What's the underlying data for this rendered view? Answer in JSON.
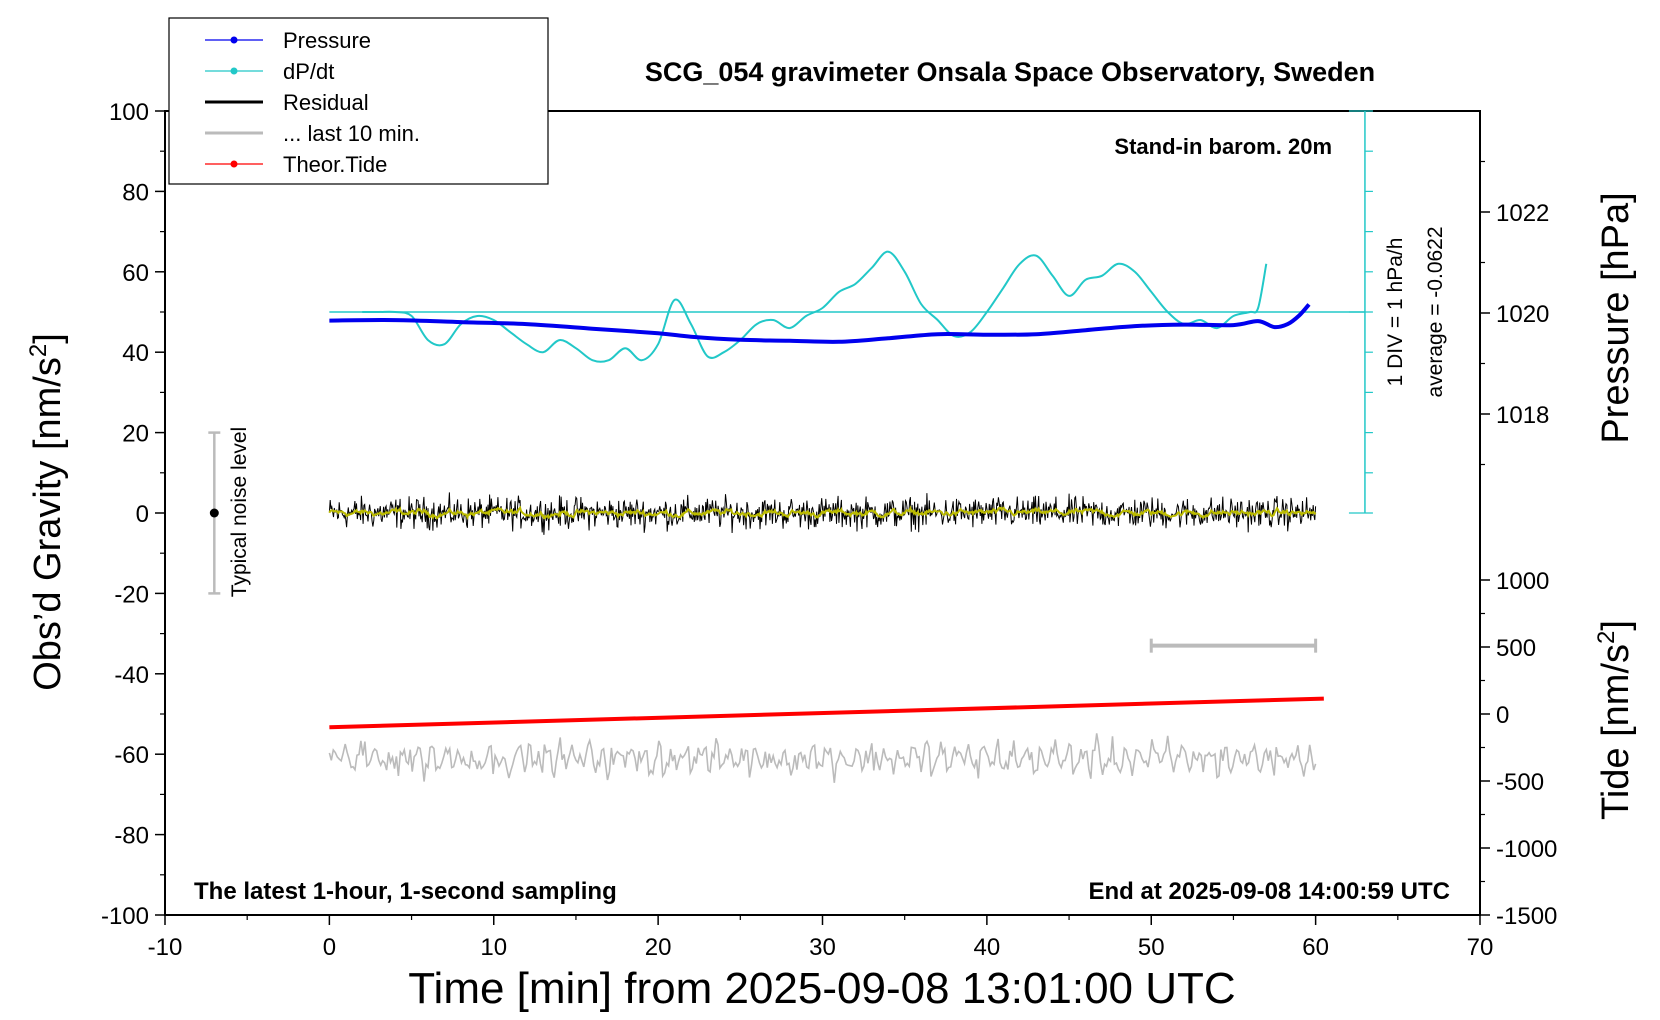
{
  "chart_data": {
    "type": "line",
    "title": "SCG_054 gravimeter Onsala Space Observatory, Sweden",
    "xlabel": "Time [min] from 2025-09-08 13:01:00 UTC",
    "ylabel_left": "Obs’d Gravity [nm/s",
    "ylabel_left_sup": "2",
    "ylabel_left_tail": "]",
    "ylabel_right_pressure": "Pressure [hPa]",
    "ylabel_right_tide": "Tide [nm/s",
    "ylabel_right_tide_sup": "2",
    "ylabel_right_tide_tail": "]",
    "xlim": [
      -10,
      70
    ],
    "ylim_left": [
      -100,
      100
    ],
    "xticks": [
      -10,
      0,
      10,
      20,
      30,
      40,
      50,
      60,
      70
    ],
    "xtick_labels": [
      "-10",
      "0",
      "10",
      "20",
      "30",
      "40",
      "50",
      "60",
      "70"
    ],
    "yticks_left": [
      -100,
      -80,
      -60,
      -40,
      -20,
      0,
      20,
      40,
      60,
      80,
      100
    ],
    "ytick_left_labels": [
      "-100",
      "-80",
      "-60",
      "-40",
      "-20",
      "0",
      "20",
      "40",
      "60",
      "80",
      "100"
    ],
    "pressure_ticks": [
      1018,
      1020,
      1022
    ],
    "pressure_tick_labels": [
      "1018",
      "1020",
      "1022"
    ],
    "tide_ticks": [
      -1500,
      -1000,
      -500,
      0,
      500,
      1000
    ],
    "tide_tick_labels": [
      "-1500",
      "-1000",
      "-500",
      "0",
      "500",
      "1000"
    ],
    "legend_position": "top-left",
    "legend": [
      {
        "label": "Pressure",
        "color": "#0000ee",
        "marker": true
      },
      {
        "label": "dP/dt",
        "color": "#22c8c8",
        "marker": true
      },
      {
        "label": "Residual",
        "color": "#000000",
        "marker": false
      },
      {
        "label": "... last 10 min.",
        "color": "#bbbbbb",
        "marker": false
      },
      {
        "label": "Theor.Tide",
        "color": "#ff0000",
        "marker": true
      }
    ],
    "annotations": {
      "barometer": "Stand-in barom. 20m",
      "div_scale": "1 DIV = 1 hPa/h",
      "average": "average = -0.0622",
      "noise": "Typical noise level",
      "bottom_left": "The latest 1-hour, 1-second sampling",
      "bottom_right": "End at 2025-09-08 14:00:59 UTC"
    },
    "noise_bar": {
      "x": -7,
      "center": 0,
      "low": -20,
      "high": 20
    },
    "last10_bar": {
      "x_start": 50,
      "x_end": 60,
      "y": -33
    },
    "series": [
      {
        "name": "Pressure",
        "color": "#0000ee",
        "axis": "pressure_hPa",
        "x": [
          0,
          4,
          8,
          12,
          16,
          20,
          22,
          25,
          28,
          31,
          34,
          37,
          40,
          43,
          46,
          49,
          52,
          55,
          56.5,
          57.5,
          58.3,
          59,
          59.6
        ],
        "y": [
          1019.85,
          1019.86,
          1019.82,
          1019.78,
          1019.69,
          1019.6,
          1019.53,
          1019.47,
          1019.45,
          1019.43,
          1019.5,
          1019.58,
          1019.57,
          1019.58,
          1019.66,
          1019.74,
          1019.77,
          1019.76,
          1019.84,
          1019.72,
          1019.78,
          1019.95,
          1020.17
        ]
      },
      {
        "name": "dP/dt",
        "color": "#22c8c8",
        "axis": "left_nms2",
        "x": [
          2,
          3,
          4,
          5,
          6,
          7,
          8,
          9,
          10,
          11,
          12,
          13,
          14,
          15,
          16,
          17,
          18,
          19,
          20,
          21,
          22,
          23,
          24,
          25,
          26,
          27,
          28,
          29,
          30,
          31,
          32,
          33,
          34,
          35,
          36,
          37,
          38,
          39,
          40,
          41,
          42,
          43,
          44,
          45,
          46,
          47,
          48,
          49,
          50,
          51,
          52,
          53,
          54,
          55,
          56,
          56.5,
          57
        ],
        "y": [
          50,
          50,
          50,
          49,
          43,
          42,
          47,
          49,
          48,
          45,
          42,
          40,
          43,
          41,
          38,
          38,
          41,
          38,
          42,
          53,
          47,
          39,
          40,
          43,
          47,
          48,
          46,
          49,
          51,
          55,
          57,
          61,
          65,
          60,
          52,
          48,
          44,
          45,
          50,
          56,
          62,
          64,
          59,
          54,
          58,
          59,
          62,
          60,
          55,
          50,
          47,
          48,
          46,
          49,
          50,
          51,
          62
        ]
      },
      {
        "name": "Residual",
        "color": "#000000",
        "axis": "left_nms2",
        "x": [
          0,
          60
        ],
        "y": [
          0,
          0
        ],
        "amplitude": 6
      },
      {
        "name": "... last 10 min.",
        "color": "#bbbbbb",
        "axis": "left_nms2",
        "x": [
          0,
          60
        ],
        "y": [
          -61,
          -61
        ],
        "amplitude": 4
      },
      {
        "name": "Theor.Tide",
        "color": "#ff0000",
        "axis": "tide_nms2",
        "x": [
          0,
          60.5
        ],
        "y": [
          -99,
          115
        ]
      }
    ],
    "dpdt_average_line": {
      "color": "#22c8c8",
      "x_start": 0,
      "x_end": 63,
      "y": 50
    },
    "running_mean_color": "#bbbb00"
  }
}
